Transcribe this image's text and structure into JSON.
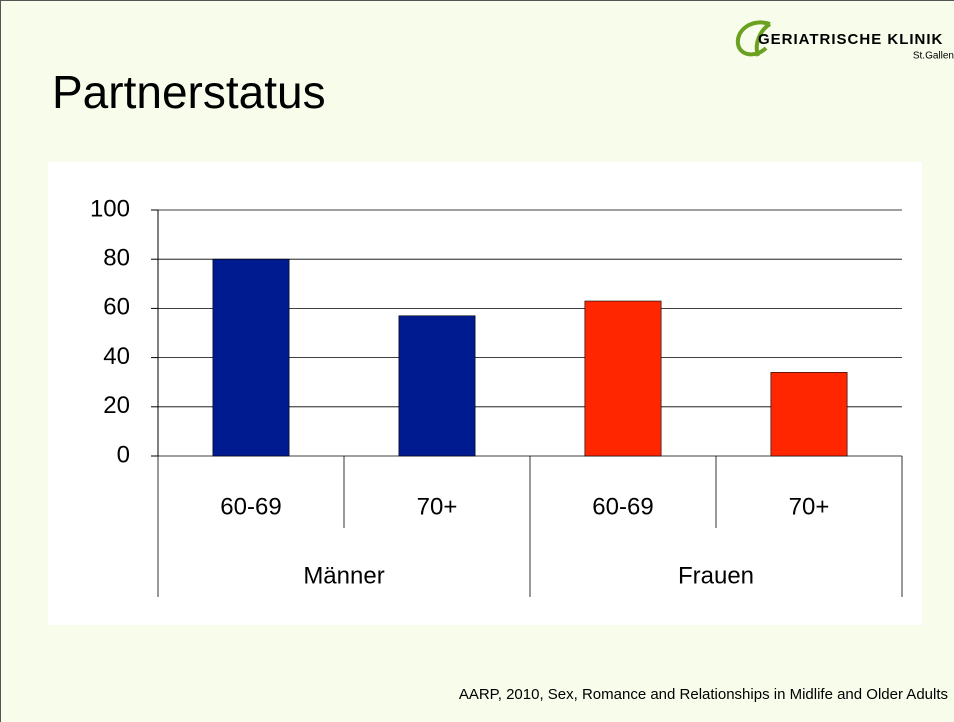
{
  "logo": {
    "name": "GERIATRISCHE KLINIK",
    "place": "St.Gallen"
  },
  "chart_data": {
    "type": "bar",
    "title": "Partnerstatus",
    "categories": [
      "60-69",
      "70+",
      "60-69",
      "70+"
    ],
    "groups": [
      "Männer",
      "Frauen"
    ],
    "values": [
      80,
      57,
      63,
      34
    ],
    "colors": [
      "#001a8f",
      "#001a8f",
      "#ff2600",
      "#ff2600"
    ],
    "ylim": [
      0,
      100
    ],
    "yticks": [
      0,
      20,
      40,
      60,
      80,
      100
    ],
    "grid": true,
    "source": "AARP, 2010, Sex, Romance and Relationships in Midlife and Older Adults"
  }
}
